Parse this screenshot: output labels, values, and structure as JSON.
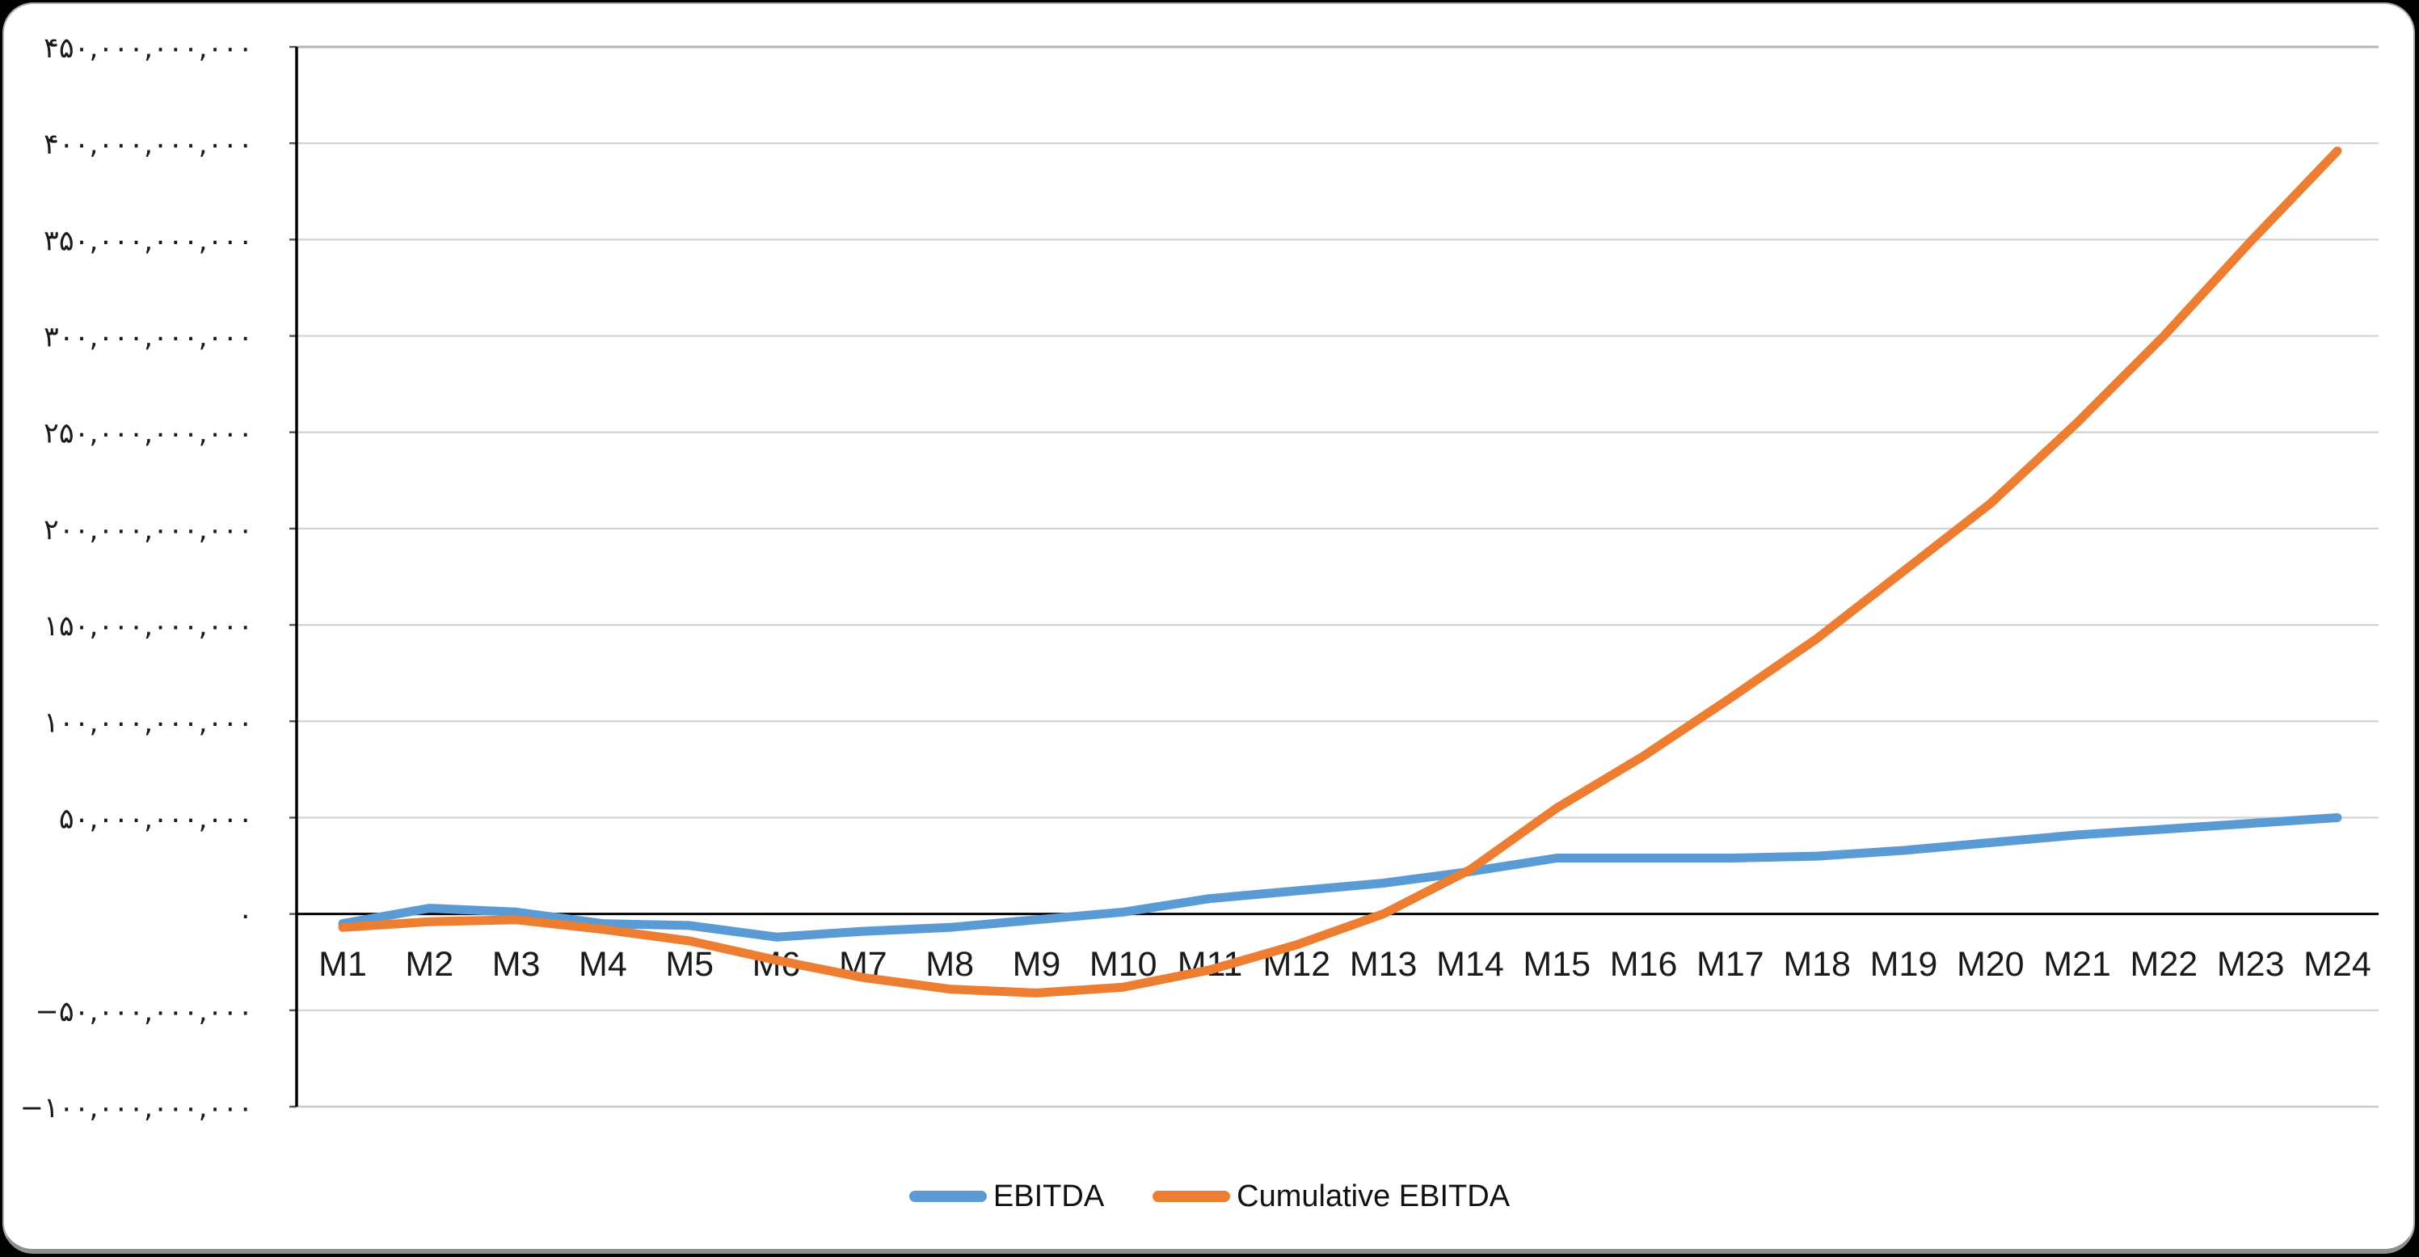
{
  "page": {
    "background_color": "#000000",
    "card_color": "#ffffff"
  },
  "chart_data": {
    "type": "line",
    "title": "",
    "xlabel": "",
    "ylabel": "",
    "categories": [
      "M1",
      "M2",
      "M3",
      "M4",
      "M5",
      "M6",
      "M7",
      "M8",
      "M9",
      "M10",
      "M11",
      "M12",
      "M13",
      "M14",
      "M15",
      "M16",
      "M17",
      "M18",
      "M19",
      "M20",
      "M21",
      "M22",
      "M23",
      "M24"
    ],
    "series": [
      {
        "name": "EBITDA",
        "color": "#5B9BD5",
        "values_billions": [
          -5,
          3,
          1,
          -5,
          -6,
          -12,
          -9,
          -7,
          -3,
          1,
          8,
          12,
          16,
          22,
          29,
          29,
          29,
          30,
          33,
          37,
          41,
          44,
          47,
          50
        ]
      },
      {
        "name": "Cumulative EBITDA",
        "color": "#ED7D31",
        "values_billions": [
          -7,
          -4,
          -3,
          -8,
          -14,
          -24,
          -33,
          -39,
          -41,
          -38,
          -29,
          -16,
          0,
          23,
          55,
          82,
          112,
          143,
          178,
          213,
          255,
          300,
          349,
          396
        ]
      }
    ],
    "ylim_billions": [
      -100,
      450
    ],
    "y_tick_step_billions": 50,
    "y_tick_values_billions": [
      450,
      400,
      350,
      300,
      250,
      200,
      150,
      100,
      50,
      0,
      -50,
      -100
    ],
    "y_tick_labels": [
      "۴۵۰,۰۰۰,۰۰۰,۰۰۰",
      "۴۰۰,۰۰۰,۰۰۰,۰۰۰",
      "۳۵۰,۰۰۰,۰۰۰,۰۰۰",
      "۳۰۰,۰۰۰,۰۰۰,۰۰۰",
      "۲۵۰,۰۰۰,۰۰۰,۰۰۰",
      "۲۰۰,۰۰۰,۰۰۰,۰۰۰",
      "۱۵۰,۰۰۰,۰۰۰,۰۰۰",
      "۱۰۰,۰۰۰,۰۰۰,۰۰۰",
      "۵۰,۰۰۰,۰۰۰,۰۰۰",
      "۰",
      "−۵۰,۰۰۰,۰۰۰,۰۰۰",
      "−۱۰۰,۰۰۰,۰۰۰,۰۰۰"
    ],
    "grid": true,
    "legend_position": "bottom"
  },
  "colors": {
    "gridline": "#d2d2d2",
    "plot_top_border": "#b5b5b5",
    "plot_bottom_border": "#c9c9c9",
    "zero_axis": "#000000",
    "y_axis_line": "#000000",
    "tick_mark": "#595959",
    "label_text": "#1a1a1a"
  }
}
